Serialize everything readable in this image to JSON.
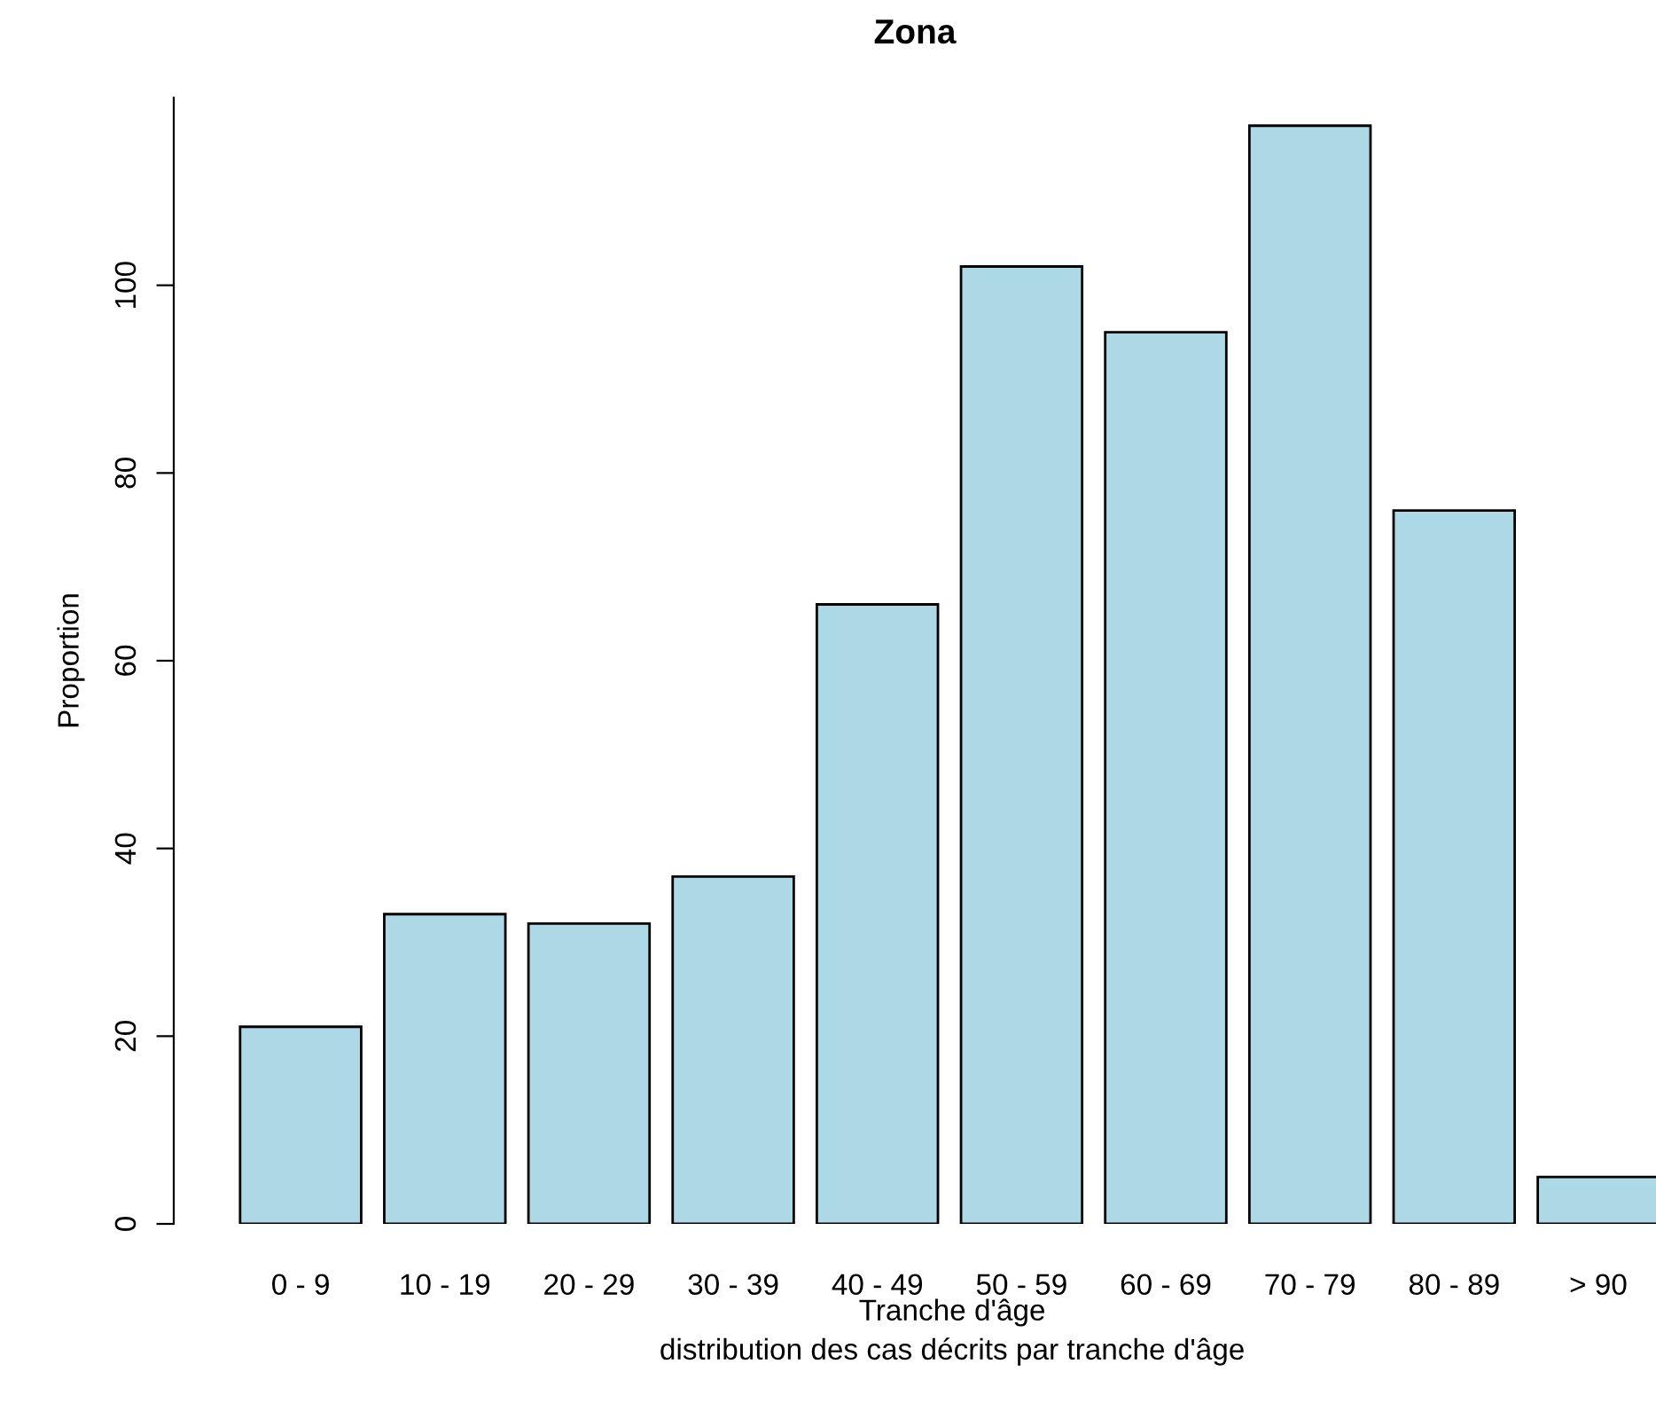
{
  "chart_data": {
    "type": "bar",
    "title": "Zona",
    "xlabel": "Tranche d'âge",
    "subtitle": "distribution des cas décrits par tranche d'âge",
    "ylabel": "Proportion",
    "categories": [
      "0 - 9",
      "10 - 19",
      "20 - 29",
      "30 - 39",
      "40 - 49",
      "50 - 59",
      "60 - 69",
      "70 - 79",
      "80 - 89",
      "> 90"
    ],
    "values": [
      21,
      33,
      32,
      37,
      66,
      102,
      95,
      117,
      76,
      5
    ],
    "color": "#add8e6",
    "ylim": [
      0,
      120
    ],
    "yticks": [
      0,
      20,
      40,
      60,
      80,
      100
    ],
    "grid": false
  }
}
